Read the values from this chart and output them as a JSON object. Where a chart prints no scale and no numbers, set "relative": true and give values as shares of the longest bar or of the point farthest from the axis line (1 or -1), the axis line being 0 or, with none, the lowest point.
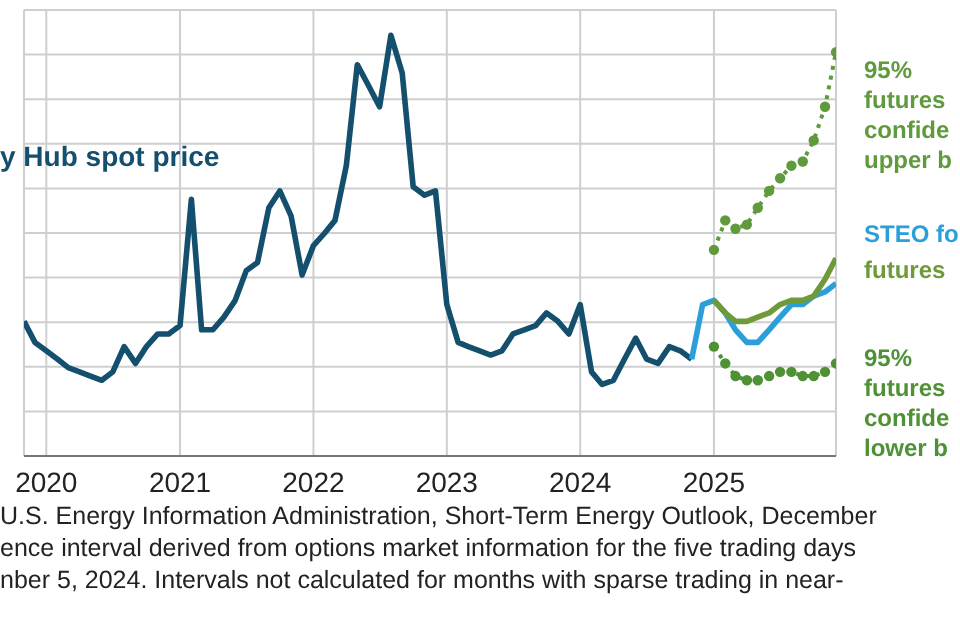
{
  "chart_data": {
    "type": "line",
    "relative": true,
    "grid": true,
    "xlim": [
      "2019-11",
      "2025-12"
    ],
    "xticks": [
      "2020",
      "2021",
      "2022",
      "2023",
      "2024",
      "2025"
    ],
    "annotations": [
      "U.S. Energy Information Administration, Short-Term Energy Outlook, December",
      "ence interval derived from options market information for the five trading days",
      "nber 5, 2024. Intervals not calculated for months with sparse trading in near-"
    ],
    "series": [
      {
        "name": "y Hub spot price",
        "color": "#14506e",
        "x": [
          "2019-11",
          "2019-12",
          "2020-01",
          "2020-02",
          "2020-03",
          "2020-04",
          "2020-05",
          "2020-06",
          "2020-07",
          "2020-08",
          "2020-09",
          "2020-10",
          "2020-11",
          "2020-12",
          "2021-01",
          "2021-02",
          "2021-03",
          "2021-04",
          "2021-05",
          "2021-06",
          "2021-07",
          "2021-08",
          "2021-09",
          "2021-10",
          "2021-11",
          "2021-12",
          "2022-01",
          "2022-02",
          "2022-03",
          "2022-04",
          "2022-05",
          "2022-06",
          "2022-07",
          "2022-08",
          "2022-09",
          "2022-10",
          "2022-11",
          "2022-12",
          "2023-01",
          "2023-02",
          "2023-03",
          "2023-04",
          "2023-05",
          "2023-06",
          "2023-07",
          "2023-08",
          "2023-09",
          "2023-10",
          "2023-11",
          "2023-12",
          "2024-01",
          "2024-02",
          "2024-03",
          "2024-04",
          "2024-05",
          "2024-06",
          "2024-07",
          "2024-08",
          "2024-09",
          "2024-10",
          "2024-11"
        ],
        "values": [
          0.32,
          0.27,
          0.25,
          0.23,
          0.21,
          0.2,
          0.19,
          0.18,
          0.2,
          0.26,
          0.22,
          0.26,
          0.29,
          0.29,
          0.31,
          0.61,
          0.3,
          0.3,
          0.33,
          0.37,
          0.44,
          0.46,
          0.59,
          0.63,
          0.57,
          0.43,
          0.5,
          0.53,
          0.56,
          0.69,
          0.93,
          0.88,
          0.83,
          1,
          0.91,
          0.64,
          0.62,
          0.63,
          0.36,
          0.27,
          0.26,
          0.25,
          0.24,
          0.25,
          0.29,
          0.3,
          0.31,
          0.34,
          0.32,
          0.29,
          0.36,
          0.2,
          0.17,
          0.18,
          0.23,
          0.28,
          0.23,
          0.22,
          0.26,
          0.25,
          0.23
        ]
      },
      {
        "name": "95%\nfutures\nconfide\nupper b",
        "color": "#5f9a3c",
        "marker": "circle",
        "line_style": "dotted",
        "x": [
          "2025-01",
          "2025-02",
          "2025-03",
          "2025-04",
          "2025-05",
          "2025-06",
          "2025-07",
          "2025-08",
          "2025-09",
          "2025-10",
          "2025-11",
          "2025-12"
        ],
        "values": [
          0.49,
          0.56,
          0.54,
          0.55,
          0.59,
          0.63,
          0.66,
          0.69,
          0.7,
          0.75,
          0.83,
          0.96
        ]
      },
      {
        "name": "STEO fo",
        "color": "#2b9fd9",
        "x": [
          "2024-11",
          "2024-12",
          "2025-01",
          "2025-02",
          "2025-03",
          "2025-04",
          "2025-05",
          "2025-06",
          "2025-07",
          "2025-08",
          "2025-09",
          "2025-10",
          "2025-11",
          "2025-12"
        ],
        "values": [
          0.23,
          0.36,
          0.37,
          0.34,
          0.3,
          0.27,
          0.27,
          0.3,
          0.33,
          0.36,
          0.36,
          0.38,
          0.39,
          0.41
        ]
      },
      {
        "name": "futures",
        "color": "#6e9a3a",
        "x": [
          "2025-01",
          "2025-02",
          "2025-03",
          "2025-04",
          "2025-05",
          "2025-06",
          "2025-07",
          "2025-08",
          "2025-09",
          "2025-10",
          "2025-11",
          "2025-12"
        ],
        "values": [
          0.37,
          0.34,
          0.32,
          0.32,
          0.33,
          0.34,
          0.36,
          0.37,
          0.37,
          0.38,
          0.42,
          0.47
        ]
      },
      {
        "name": "95%\nfutures\nconfide\nlower b",
        "color": "#4f9236",
        "marker": "circle",
        "line_style": "dotted",
        "x": [
          "2025-01",
          "2025-02",
          "2025-03",
          "2025-04",
          "2025-05",
          "2025-06",
          "2025-07",
          "2025-08",
          "2025-09",
          "2025-10",
          "2025-11",
          "2025-12"
        ],
        "values": [
          0.26,
          0.22,
          0.19,
          0.18,
          0.18,
          0.19,
          0.2,
          0.2,
          0.19,
          0.19,
          0.2,
          0.22
        ]
      }
    ]
  }
}
